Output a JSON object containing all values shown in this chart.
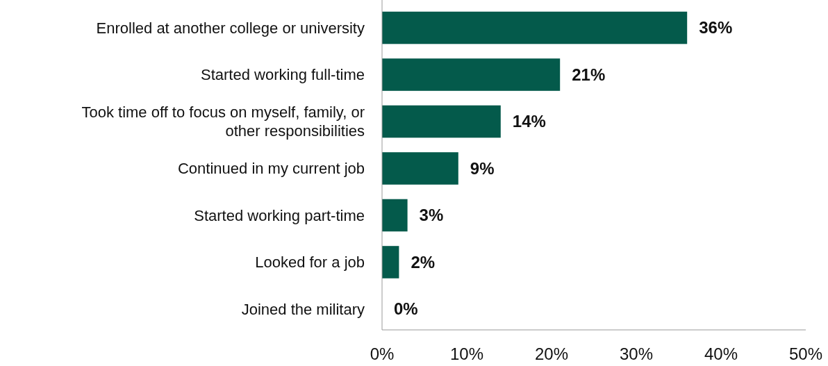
{
  "chart_data": {
    "type": "bar",
    "orientation": "horizontal",
    "categories": [
      "Enrolled at another college or university",
      "Started working full-time",
      "Took time off to focus on myself, family, or other responsibilities",
      "Continued in my current job",
      "Started working part-time",
      "Looked for a job",
      "Joined the military"
    ],
    "values": [
      36,
      21,
      14,
      9,
      3,
      2,
      0
    ],
    "color": "#045a4b",
    "xlim": [
      0,
      50
    ],
    "xticks": [
      {
        "value": 0,
        "label": "0%"
      },
      {
        "value": 10,
        "label": "10%"
      },
      {
        "value": 20,
        "label": "20%"
      },
      {
        "value": 30,
        "label": "30%"
      },
      {
        "value": 40,
        "label": "40%"
      },
      {
        "value": 50,
        "label": "50%"
      }
    ],
    "value_labels": [
      "36%",
      "21%",
      "14%",
      "9%",
      "3%",
      "2%",
      "0%"
    ]
  }
}
